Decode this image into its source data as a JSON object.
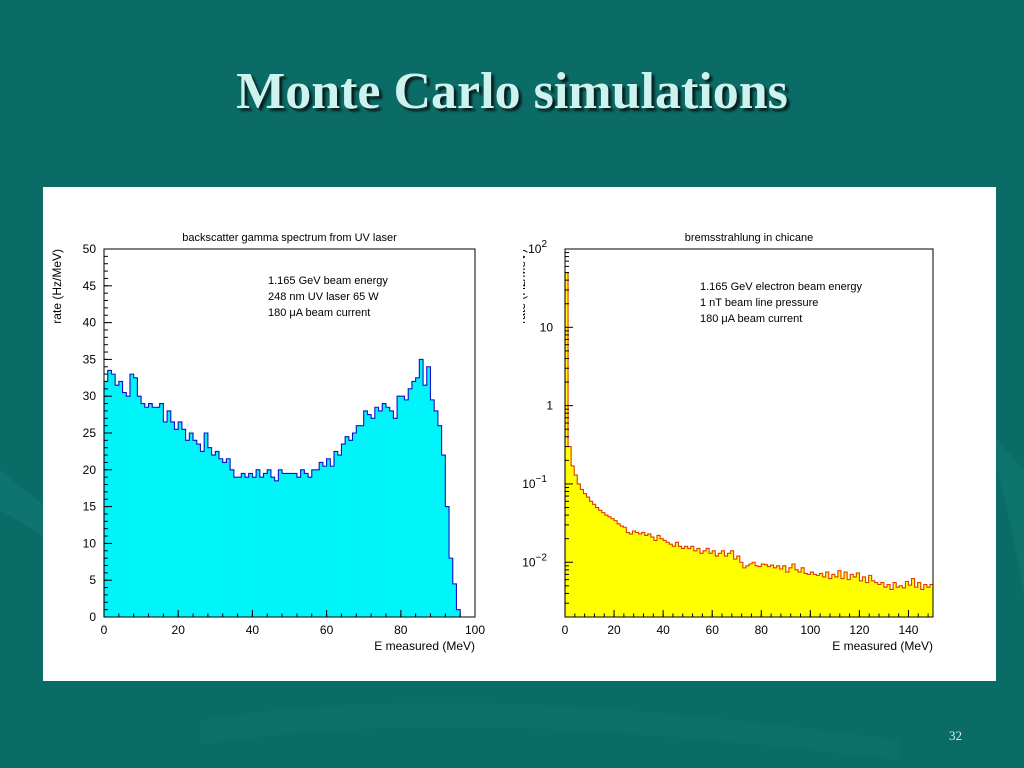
{
  "slide": {
    "title": "Monte Carlo simulations",
    "page_number": "32",
    "background_color": "#0b6b66",
    "title_color": "#cdf3ee"
  },
  "chart_data": [
    {
      "type": "bar",
      "histogram": true,
      "title": "backscatter gamma spectrum from UV laser",
      "xlabel": "E measured (MeV)",
      "ylabel": "rate (Hz/MeV)",
      "xlim": [
        0,
        100
      ],
      "ylim": [
        0,
        50
      ],
      "xticks": [
        0,
        20,
        40,
        60,
        80,
        100
      ],
      "yticks": [
        0,
        5,
        10,
        15,
        20,
        25,
        30,
        35,
        40,
        45,
        50
      ],
      "fill_color": "#00f5fb",
      "line_color": "#1010c8",
      "annotations": [
        "1.165 GeV beam energy",
        "248 nm UV laser 65 W",
        "180 μA beam current"
      ],
      "bin_width": 1,
      "x": [
        0,
        1,
        2,
        3,
        4,
        5,
        6,
        7,
        8,
        9,
        10,
        11,
        12,
        13,
        14,
        15,
        16,
        17,
        18,
        19,
        20,
        21,
        22,
        23,
        24,
        25,
        26,
        27,
        28,
        29,
        30,
        31,
        32,
        33,
        34,
        35,
        36,
        37,
        38,
        39,
        40,
        41,
        42,
        43,
        44,
        45,
        46,
        47,
        48,
        49,
        50,
        51,
        52,
        53,
        54,
        55,
        56,
        57,
        58,
        59,
        60,
        61,
        62,
        63,
        64,
        65,
        66,
        67,
        68,
        69,
        70,
        71,
        72,
        73,
        74,
        75,
        76,
        77,
        78,
        79,
        80,
        81,
        82,
        83,
        84,
        85,
        86,
        87,
        88,
        89,
        90,
        91,
        92,
        93,
        94,
        95,
        96,
        97,
        98,
        99
      ],
      "values": [
        32.0,
        33.5,
        33.0,
        31.5,
        32.0,
        30.5,
        30.0,
        33.0,
        32.5,
        30.0,
        29.0,
        28.5,
        29.0,
        28.5,
        28.5,
        29.0,
        26.5,
        28.0,
        26.5,
        25.5,
        26.5,
        25.5,
        24.0,
        25.0,
        24.0,
        23.5,
        22.5,
        25.0,
        23.0,
        22.0,
        22.5,
        21.5,
        21.0,
        21.5,
        20.0,
        19.0,
        19.0,
        19.5,
        19.0,
        19.5,
        19.0,
        20.0,
        19.0,
        19.5,
        20.0,
        19.0,
        18.5,
        20.0,
        19.5,
        19.5,
        19.5,
        19.5,
        19.0,
        20.0,
        19.5,
        19.0,
        20.0,
        20.0,
        21.0,
        20.5,
        21.5,
        20.5,
        22.5,
        22.0,
        23.5,
        24.5,
        24.0,
        25.0,
        26.0,
        26.0,
        28.0,
        27.5,
        27.0,
        28.5,
        28.0,
        29.0,
        28.5,
        28.0,
        27.0,
        30.0,
        30.0,
        29.5,
        31.0,
        32.0,
        32.5,
        35.0,
        31.5,
        34.0,
        29.5,
        28.0,
        26.0,
        22.0,
        15.0,
        8.0,
        4.5,
        1.0,
        0,
        0,
        0,
        0
      ]
    },
    {
      "type": "bar",
      "histogram": true,
      "title": "bremsstrahlung in chicane",
      "xlabel": "E measured (MeV)",
      "ylabel": "rate (Hz/MeV)",
      "xlim": [
        0,
        150
      ],
      "ylim": [
        0.002,
        100
      ],
      "log_y": true,
      "xticks": [
        0,
        20,
        40,
        60,
        80,
        100,
        120,
        140
      ],
      "ytick_labels": [
        "10^2",
        "10",
        "1",
        "10^-1",
        "10^-2"
      ],
      "fill_color": "#ffff00",
      "line_color": "#e03a00",
      "annotations": [
        "1.165 GeV electron beam energy",
        "1 nT beam line pressure",
        "180 μA beam current"
      ],
      "bin_width": 1.25,
      "x": [
        0,
        1.25,
        2.5,
        3.75,
        5,
        6.25,
        7.5,
        8.75,
        10,
        11.25,
        12.5,
        13.75,
        15,
        16.25,
        17.5,
        18.75,
        20,
        21.25,
        22.5,
        23.75,
        25,
        26.25,
        27.5,
        28.75,
        30,
        31.25,
        32.5,
        33.75,
        35,
        36.25,
        37.5,
        38.75,
        40,
        41.25,
        42.5,
        43.75,
        45,
        46.25,
        47.5,
        48.75,
        50,
        51.25,
        52.5,
        53.75,
        55,
        56.25,
        57.5,
        58.75,
        60,
        61.25,
        62.5,
        63.75,
        65,
        66.25,
        67.5,
        68.75,
        70,
        71.25,
        72.5,
        73.75,
        75,
        76.25,
        77.5,
        78.75,
        80,
        81.25,
        82.5,
        83.75,
        85,
        86.25,
        87.5,
        88.75,
        90,
        91.25,
        92.5,
        93.75,
        95,
        96.25,
        97.5,
        98.75,
        100,
        101.25,
        102.5,
        103.75,
        105,
        106.25,
        107.5,
        108.75,
        110,
        111.25,
        112.5,
        113.75,
        115,
        116.25,
        117.5,
        118.75,
        120,
        121.25,
        122.5,
        123.75,
        125,
        126.25,
        127.5,
        128.75,
        130,
        131.25,
        132.5,
        133.75,
        135,
        136.25,
        137.5,
        138.75,
        140,
        141.25,
        142.5,
        143.75,
        145,
        146.25,
        147.5,
        148.75
      ],
      "values": [
        50,
        0.3,
        0.17,
        0.13,
        0.1,
        0.085,
        0.075,
        0.068,
        0.06,
        0.055,
        0.05,
        0.046,
        0.043,
        0.04,
        0.038,
        0.036,
        0.034,
        0.031,
        0.029,
        0.028,
        0.024,
        0.023,
        0.025,
        0.024,
        0.023,
        0.024,
        0.022,
        0.023,
        0.021,
        0.019,
        0.022,
        0.02,
        0.019,
        0.018,
        0.017,
        0.016,
        0.018,
        0.016,
        0.015,
        0.016,
        0.015,
        0.016,
        0.014,
        0.015,
        0.013,
        0.014,
        0.015,
        0.013,
        0.014,
        0.012,
        0.013,
        0.014,
        0.012,
        0.013,
        0.014,
        0.011,
        0.012,
        0.01,
        0.0085,
        0.009,
        0.0095,
        0.01,
        0.009,
        0.0088,
        0.0095,
        0.0093,
        0.0088,
        0.0092,
        0.0085,
        0.009,
        0.0082,
        0.009,
        0.0075,
        0.0085,
        0.0095,
        0.008,
        0.0075,
        0.0085,
        0.0072,
        0.007,
        0.0075,
        0.007,
        0.0068,
        0.0072,
        0.0065,
        0.0075,
        0.0062,
        0.007,
        0.0065,
        0.0078,
        0.0062,
        0.0075,
        0.006,
        0.007,
        0.0065,
        0.0073,
        0.0058,
        0.0065,
        0.0055,
        0.0068,
        0.0058,
        0.0055,
        0.0052,
        0.0055,
        0.0048,
        0.0052,
        0.0045,
        0.0055,
        0.0048,
        0.005,
        0.0047,
        0.0057,
        0.0051,
        0.0062,
        0.0048,
        0.0055,
        0.0045,
        0.0052,
        0.0048,
        0.0052
      ]
    }
  ]
}
